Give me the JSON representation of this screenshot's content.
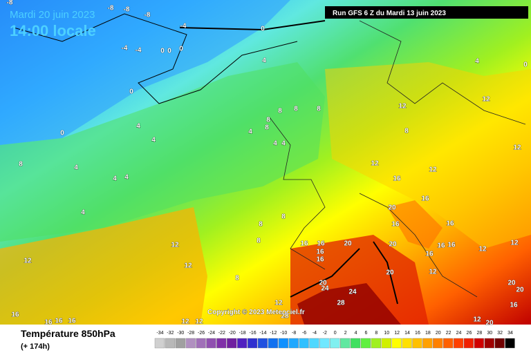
{
  "header": {
    "date": "Mardi 20 juin 2023",
    "time": "14:00 locale",
    "run": "Run GFS 6 Z du Mardi 13 juin 2023"
  },
  "footer": {
    "title": "Température 850hPa",
    "lead": "(+ 174h)",
    "copyright": "Copyright © 2023 Meteociel.fr"
  },
  "legend": {
    "values": [
      -34,
      -32,
      -30,
      -28,
      -26,
      -24,
      -22,
      -20,
      -18,
      -16,
      -14,
      -12,
      -10,
      -8,
      -6,
      -4,
      -2,
      0,
      2,
      4,
      6,
      8,
      10,
      12,
      14,
      16,
      18,
      20,
      22,
      24,
      26,
      28,
      30,
      32,
      34
    ],
    "colors": [
      "#d0d0d0",
      "#b8b8b8",
      "#a0a0a0",
      "#b090c0",
      "#a070b8",
      "#9050b0",
      "#8030a8",
      "#7020a0",
      "#5020c0",
      "#3030d0",
      "#2050e0",
      "#1070f0",
      "#1090ff",
      "#20a8ff",
      "#30c0ff",
      "#50d8ff",
      "#70e8ff",
      "#80f0f0",
      "#60e8a0",
      "#40e060",
      "#60f040",
      "#a0f020",
      "#d0f000",
      "#ffff00",
      "#ffe000",
      "#ffc000",
      "#ffa000",
      "#ff8000",
      "#ff6000",
      "#ff4000",
      "#f02000",
      "#d00000",
      "#a00000",
      "#700000",
      "#000000"
    ]
  },
  "contour_labels": [
    -8,
    -8,
    -8,
    -8,
    -4,
    0,
    -4,
    -4,
    0,
    0,
    0,
    0,
    0,
    4,
    4,
    0,
    4,
    4,
    8,
    8,
    8,
    8,
    8,
    4,
    4,
    4,
    12,
    12,
    12,
    8,
    12,
    12,
    16,
    16,
    20,
    16,
    16,
    16,
    16,
    20,
    20,
    16,
    16,
    12,
    12,
    12,
    12,
    12,
    8,
    20,
    24,
    20,
    24,
    28,
    20,
    20,
    16,
    12,
    28,
    16,
    16,
    16,
    16,
    12,
    12,
    12,
    20,
    4,
    4,
    4,
    8,
    4,
    8,
    8,
    8,
    16,
    16,
    16,
    12
  ]
}
